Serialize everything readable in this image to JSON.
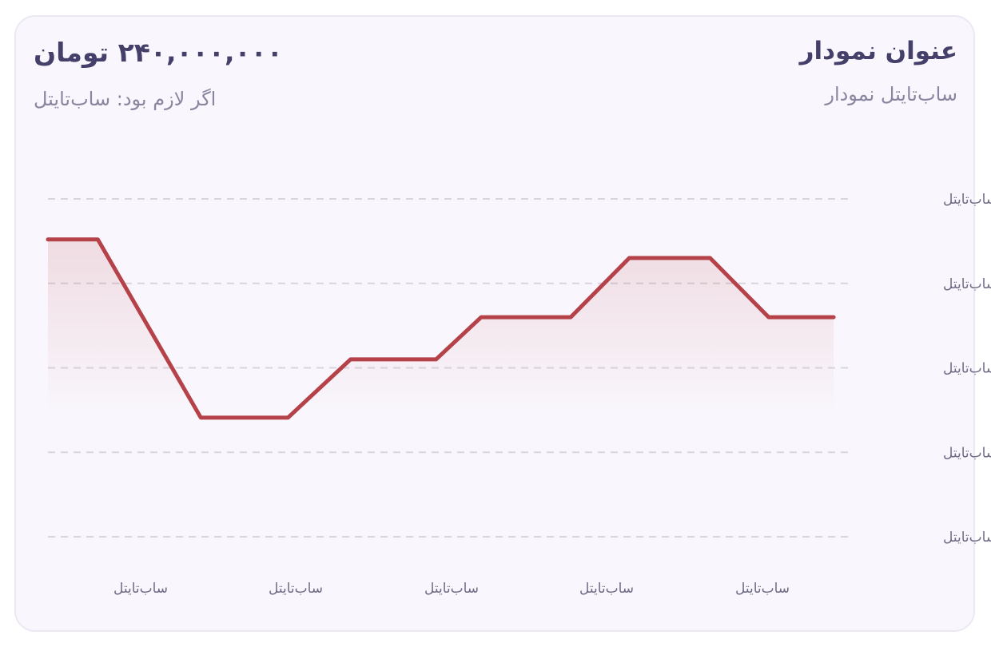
{
  "header": {
    "title": "عنوان نمودار",
    "subtitle": "ساب‌تایتل نمودار",
    "amount": "۲۴۰,۰۰۰,۰۰۰ تومان",
    "note": "اگر لازم بود: ساب‌تایتل"
  },
  "chart_data": {
    "type": "area",
    "title": "عنوان نمودار",
    "subtitle": "ساب‌تایتل نمودار",
    "y_tick_labels": [
      "ساب‌تایتل",
      "ساب‌تایتل",
      "ساب‌تایتل",
      "ساب‌تایتل",
      "ساب‌تایتل"
    ],
    "x_tick_labels": [
      "ساب‌تایتل",
      "ساب‌تایتل",
      "ساب‌تایتل",
      "ساب‌تایتل",
      "ساب‌تایتل"
    ],
    "ylim": [
      0,
      4
    ],
    "xlim": [
      0,
      100
    ],
    "x": [
      0,
      6.3,
      19.3,
      30.3,
      38.2,
      49,
      54.7,
      66,
      73.4,
      83.6,
      91,
      99.2
    ],
    "values": [
      3.52,
      3.52,
      1.41,
      1.41,
      2.1,
      2.1,
      2.6,
      2.6,
      3.3,
      3.3,
      2.6,
      2.6
    ],
    "grid": true,
    "legend": "none",
    "colors": {
      "line": "#b54248",
      "fill": "#b54248",
      "grid": "#d9d5e0",
      "ticks": "#6f6b86"
    }
  }
}
